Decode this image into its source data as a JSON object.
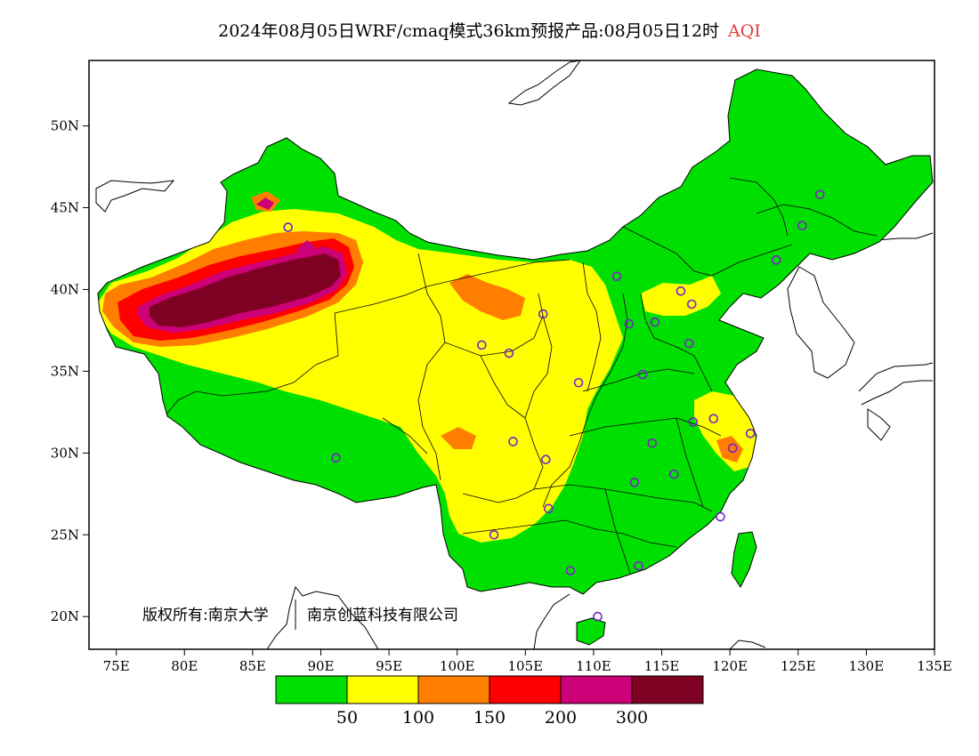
{
  "title": {
    "main": "2024年08月05日WRF/cmaq模式36km预报产品:08月05日12时",
    "tag": "AQI"
  },
  "copyright": {
    "left": "版权所有:南京大学",
    "right": "南京创蓝科技有限公司"
  },
  "map": {
    "lon_range": [
      73,
      135
    ],
    "lat_range": [
      18,
      54
    ],
    "lon_ticks": [
      {
        "value": 75,
        "label": "75E"
      },
      {
        "value": 80,
        "label": "80E"
      },
      {
        "value": 85,
        "label": "85E"
      },
      {
        "value": 90,
        "label": "90E"
      },
      {
        "value": 95,
        "label": "95E"
      },
      {
        "value": 100,
        "label": "100E"
      },
      {
        "value": 105,
        "label": "105E"
      },
      {
        "value": 110,
        "label": "110E"
      },
      {
        "value": 115,
        "label": "115E"
      },
      {
        "value": 120,
        "label": "120E"
      },
      {
        "value": 125,
        "label": "125E"
      },
      {
        "value": 130,
        "label": "130E"
      },
      {
        "value": 135,
        "label": "135E"
      }
    ],
    "lat_ticks": [
      {
        "value": 20,
        "label": "20N"
      },
      {
        "value": 25,
        "label": "25N"
      },
      {
        "value": 30,
        "label": "30N"
      },
      {
        "value": 35,
        "label": "35N"
      },
      {
        "value": 40,
        "label": "40N"
      },
      {
        "value": 45,
        "label": "45N"
      },
      {
        "value": 50,
        "label": "50N"
      }
    ],
    "station_color": "#7a22c8",
    "stations": [
      [
        87.6,
        43.8
      ],
      [
        91.1,
        29.7
      ],
      [
        101.8,
        36.6
      ],
      [
        103.8,
        36.1
      ],
      [
        106.3,
        38.5
      ],
      [
        111.7,
        40.8
      ],
      [
        112.6,
        37.9
      ],
      [
        114.5,
        38.0
      ],
      [
        116.4,
        39.9
      ],
      [
        117.2,
        39.1
      ],
      [
        117.0,
        36.7
      ],
      [
        113.6,
        34.8
      ],
      [
        108.9,
        34.3
      ],
      [
        104.1,
        30.7
      ],
      [
        106.5,
        29.6
      ],
      [
        106.7,
        26.6
      ],
      [
        102.7,
        25.0
      ],
      [
        108.3,
        22.8
      ],
      [
        110.3,
        20.0
      ],
      [
        113.3,
        23.1
      ],
      [
        119.3,
        26.1
      ],
      [
        115.9,
        28.7
      ],
      [
        113.0,
        28.2
      ],
      [
        114.3,
        30.6
      ],
      [
        117.3,
        31.9
      ],
      [
        118.8,
        32.1
      ],
      [
        120.2,
        30.3
      ],
      [
        121.5,
        31.2
      ],
      [
        123.4,
        41.8
      ],
      [
        125.3,
        43.9
      ],
      [
        126.6,
        45.8
      ]
    ]
  },
  "legend": {
    "colors": [
      "#00e000",
      "#ffff00",
      "#ff7e00",
      "#ff0000",
      "#cc0077",
      "#7e0023"
    ],
    "labels": [
      "50",
      "100",
      "150",
      "200",
      "300"
    ]
  }
}
